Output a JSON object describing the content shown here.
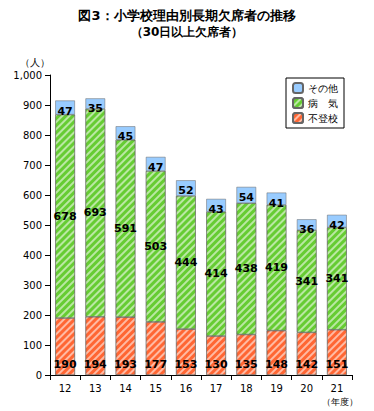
{
  "chart_data": {
    "type": "bar",
    "title": "図3：小学校理由別長期欠席者の推移",
    "subtitle": "（30日以上欠席者）",
    "xlabel": "（年度）",
    "ylabel": "（人）",
    "categories": [
      "12",
      "13",
      "14",
      "15",
      "16",
      "17",
      "18",
      "19",
      "20",
      "21"
    ],
    "series": [
      {
        "name": "不登校",
        "color": "#ff6633",
        "values": [
          190,
          194,
          193,
          177,
          153,
          130,
          135,
          148,
          142,
          151
        ]
      },
      {
        "name": "病　気",
        "color": "#66cc33",
        "values": [
          678,
          693,
          591,
          503,
          444,
          414,
          438,
          419,
          341,
          341
        ]
      },
      {
        "name": "その他",
        "color": "#99ccff",
        "values": [
          47,
          35,
          45,
          47,
          52,
          43,
          54,
          41,
          36,
          42
        ]
      }
    ],
    "ylim": [
      0,
      1000
    ],
    "yticks": [
      0,
      100,
      200,
      300,
      400,
      500,
      600,
      700,
      800,
      900,
      {
        "value": 1000,
        "label": "1,000"
      }
    ],
    "stacked": true,
    "data_labels": true,
    "grid": false,
    "legend": "upper right"
  }
}
